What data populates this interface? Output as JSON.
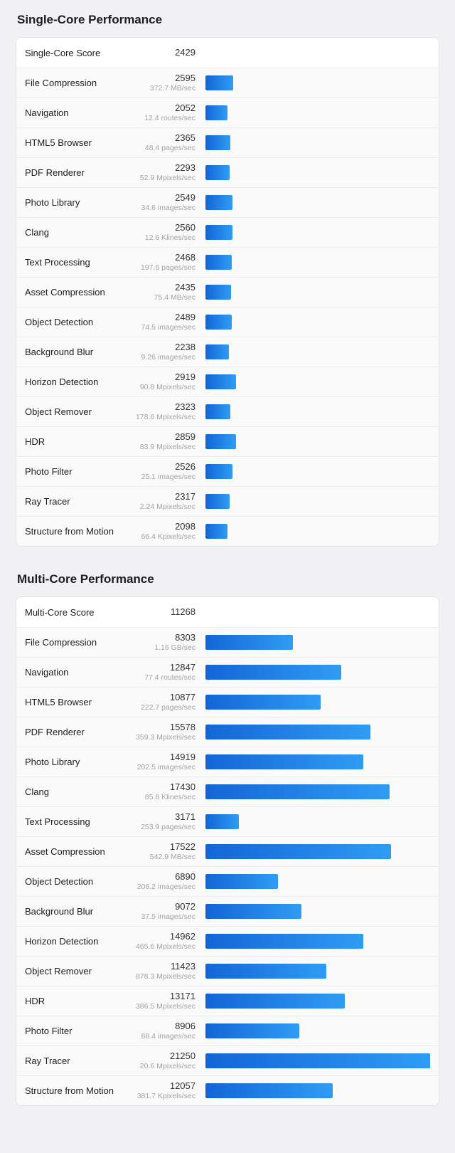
{
  "page": {
    "background_color": "#f1f1f3",
    "bar_gradient_start": "#1365d6",
    "bar_gradient_end": "#2f9cf4",
    "bar_scale_max": 21250
  },
  "chart_data": [
    {
      "type": "bar",
      "title": "Single-Core Performance",
      "score_label": "Single-Core Score",
      "score": "2429",
      "xlabel": "",
      "ylabel": "",
      "xlim": [
        0,
        21250
      ],
      "legend": "none",
      "grid": false,
      "categories": [
        "File Compression",
        "Navigation",
        "HTML5 Browser",
        "PDF Renderer",
        "Photo Library",
        "Clang",
        "Text Processing",
        "Asset Compression",
        "Object Detection",
        "Background Blur",
        "Horizon Detection",
        "Object Remover",
        "HDR",
        "Photo Filter",
        "Ray Tracer",
        "Structure from Motion"
      ],
      "values": [
        2595,
        2052,
        2365,
        2293,
        2549,
        2560,
        2468,
        2435,
        2489,
        2238,
        2919,
        2323,
        2859,
        2526,
        2317,
        2098
      ],
      "rows": [
        {
          "name": "File Compression",
          "score": "2595",
          "value": 2595,
          "rate": "372.7 MB/sec"
        },
        {
          "name": "Navigation",
          "score": "2052",
          "value": 2052,
          "rate": "12.4 routes/sec"
        },
        {
          "name": "HTML5 Browser",
          "score": "2365",
          "value": 2365,
          "rate": "48.4 pages/sec"
        },
        {
          "name": "PDF Renderer",
          "score": "2293",
          "value": 2293,
          "rate": "52.9 Mpixels/sec"
        },
        {
          "name": "Photo Library",
          "score": "2549",
          "value": 2549,
          "rate": "34.6 images/sec"
        },
        {
          "name": "Clang",
          "score": "2560",
          "value": 2560,
          "rate": "12.6 Klines/sec"
        },
        {
          "name": "Text Processing",
          "score": "2468",
          "value": 2468,
          "rate": "197.6 pages/sec"
        },
        {
          "name": "Asset Compression",
          "score": "2435",
          "value": 2435,
          "rate": "75.4 MB/sec"
        },
        {
          "name": "Object Detection",
          "score": "2489",
          "value": 2489,
          "rate": "74.5 images/sec"
        },
        {
          "name": "Background Blur",
          "score": "2238",
          "value": 2238,
          "rate": "9.26 images/sec"
        },
        {
          "name": "Horizon Detection",
          "score": "2919",
          "value": 2919,
          "rate": "90.8 Mpixels/sec"
        },
        {
          "name": "Object Remover",
          "score": "2323",
          "value": 2323,
          "rate": "178.6 Mpixels/sec"
        },
        {
          "name": "HDR",
          "score": "2859",
          "value": 2859,
          "rate": "83.9 Mpixels/sec"
        },
        {
          "name": "Photo Filter",
          "score": "2526",
          "value": 2526,
          "rate": "25.1 images/sec"
        },
        {
          "name": "Ray Tracer",
          "score": "2317",
          "value": 2317,
          "rate": "2.24 Mpixels/sec"
        },
        {
          "name": "Structure from Motion",
          "score": "2098",
          "value": 2098,
          "rate": "66.4 Kpixels/sec"
        }
      ]
    },
    {
      "type": "bar",
      "title": "Multi-Core Performance",
      "score_label": "Multi-Core Score",
      "score": "11268",
      "xlabel": "",
      "ylabel": "",
      "xlim": [
        0,
        21250
      ],
      "legend": "none",
      "grid": false,
      "categories": [
        "File Compression",
        "Navigation",
        "HTML5 Browser",
        "PDF Renderer",
        "Photo Library",
        "Clang",
        "Text Processing",
        "Asset Compression",
        "Object Detection",
        "Background Blur",
        "Horizon Detection",
        "Object Remover",
        "HDR",
        "Photo Filter",
        "Ray Tracer",
        "Structure from Motion"
      ],
      "values": [
        8303,
        12847,
        10877,
        15578,
        14919,
        17430,
        3171,
        17522,
        6890,
        9072,
        14962,
        11423,
        13171,
        8906,
        21250,
        12057
      ],
      "rows": [
        {
          "name": "File Compression",
          "score": "8303",
          "value": 8303,
          "rate": "1.16 GB/sec"
        },
        {
          "name": "Navigation",
          "score": "12847",
          "value": 12847,
          "rate": "77.4 routes/sec"
        },
        {
          "name": "HTML5 Browser",
          "score": "10877",
          "value": 10877,
          "rate": "222.7 pages/sec"
        },
        {
          "name": "PDF Renderer",
          "score": "15578",
          "value": 15578,
          "rate": "359.3 Mpixels/sec"
        },
        {
          "name": "Photo Library",
          "score": "14919",
          "value": 14919,
          "rate": "202.5 images/sec"
        },
        {
          "name": "Clang",
          "score": "17430",
          "value": 17430,
          "rate": "85.8 Klines/sec"
        },
        {
          "name": "Text Processing",
          "score": "3171",
          "value": 3171,
          "rate": "253.9 pages/sec"
        },
        {
          "name": "Asset Compression",
          "score": "17522",
          "value": 17522,
          "rate": "542.9 MB/sec"
        },
        {
          "name": "Object Detection",
          "score": "6890",
          "value": 6890,
          "rate": "206.2 images/sec"
        },
        {
          "name": "Background Blur",
          "score": "9072",
          "value": 9072,
          "rate": "37.5 images/sec"
        },
        {
          "name": "Horizon Detection",
          "score": "14962",
          "value": 14962,
          "rate": "465.6 Mpixels/sec"
        },
        {
          "name": "Object Remover",
          "score": "11423",
          "value": 11423,
          "rate": "878.3 Mpixels/sec"
        },
        {
          "name": "HDR",
          "score": "13171",
          "value": 13171,
          "rate": "386.5 Mpixels/sec"
        },
        {
          "name": "Photo Filter",
          "score": "8906",
          "value": 8906,
          "rate": "88.4 images/sec"
        },
        {
          "name": "Ray Tracer",
          "score": "21250",
          "value": 21250,
          "rate": "20.6 Mpixels/sec"
        },
        {
          "name": "Structure from Motion",
          "score": "12057",
          "value": 12057,
          "rate": "381.7 Kpixels/sec"
        }
      ]
    }
  ]
}
